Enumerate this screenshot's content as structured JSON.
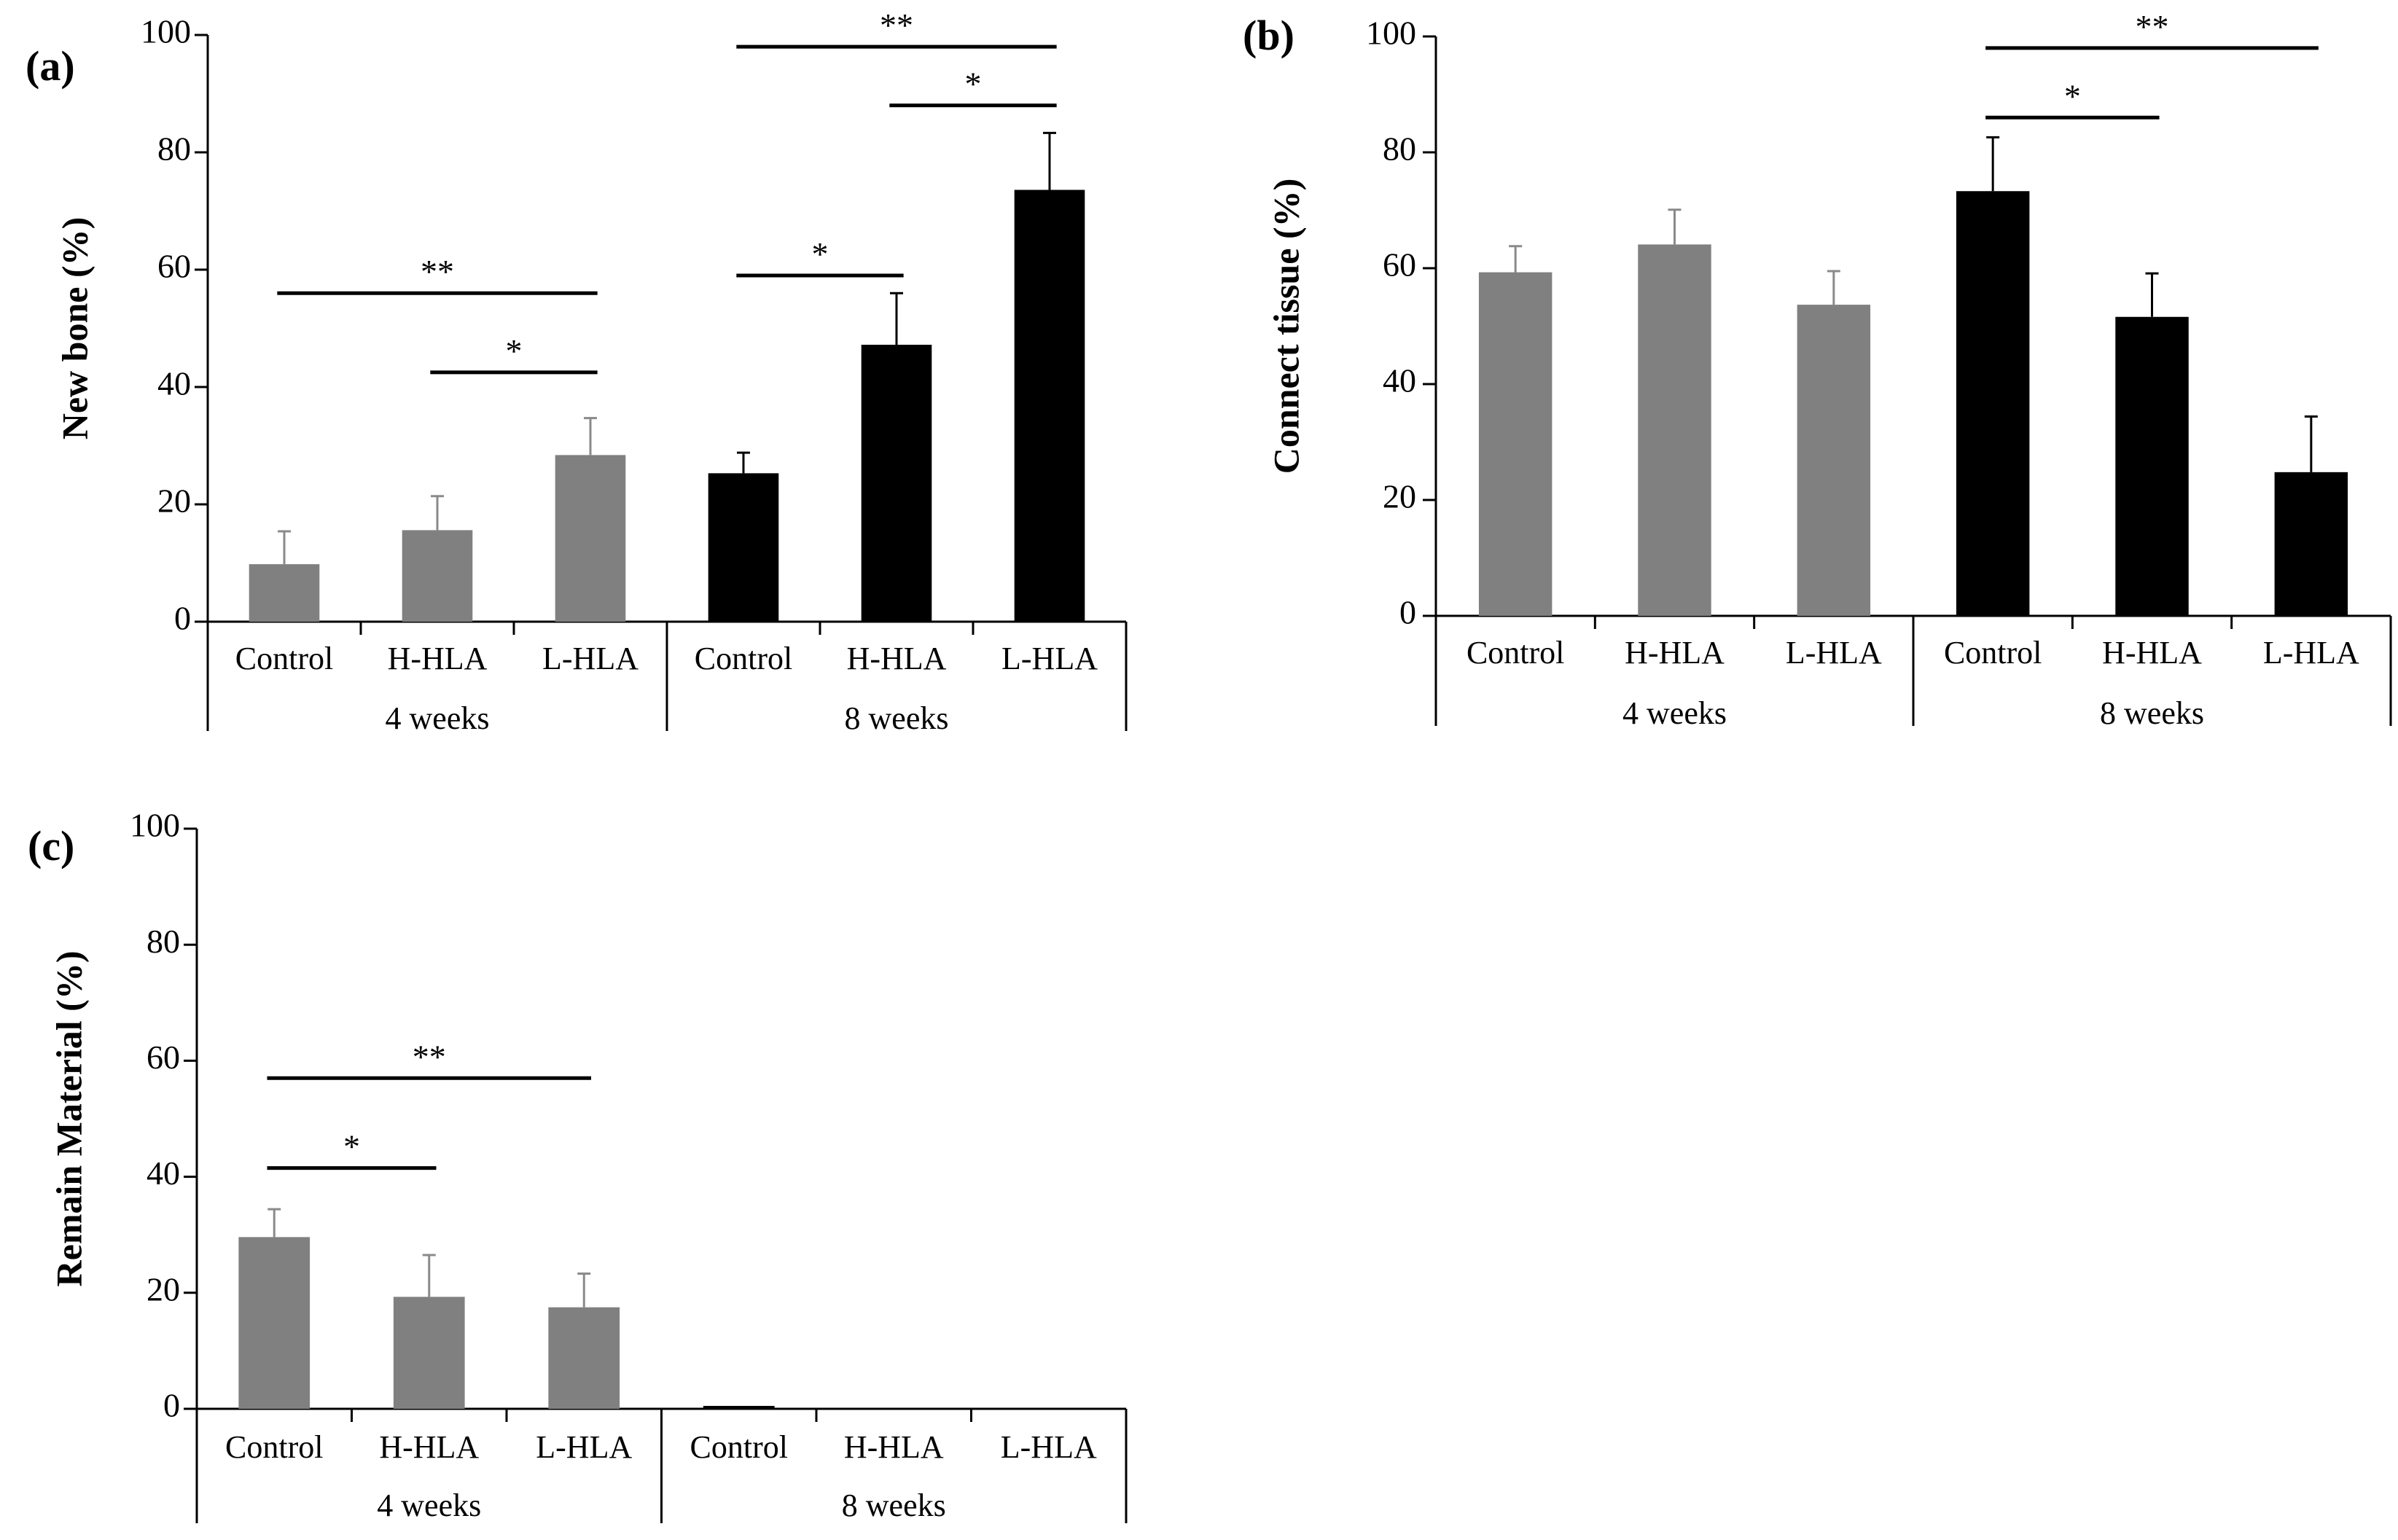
{
  "colors": {
    "week4": "#808080",
    "week8": "#000000",
    "axis": "#000000",
    "errorbar_week4": "#8a8a8a"
  },
  "chart_data": [
    {
      "type": "bar",
      "panel_label": "(a)",
      "ylabel": "New bone (%)",
      "ylim": [
        0,
        100
      ],
      "yticks": [
        "0",
        "20",
        "40",
        "60",
        "80",
        "100"
      ],
      "categories": [
        "Control",
        "H-HLA",
        "L-HLA",
        "Control",
        "H-HLA",
        "L-HLA"
      ],
      "groups": [
        {
          "label": "4 weeks",
          "indices": [
            0,
            1,
            2
          ]
        },
        {
          "label": "8 weeks",
          "indices": [
            3,
            4,
            5
          ]
        }
      ],
      "values": [
        9.8,
        15.6,
        28.4,
        25.3,
        47.2,
        73.6
      ],
      "errors": [
        5.6,
        5.8,
        6.3,
        3.5,
        8.8,
        9.7
      ],
      "colors": [
        "#808080",
        "#808080",
        "#808080",
        "#000000",
        "#000000",
        "#000000"
      ],
      "significance": [
        {
          "from": 0,
          "to": 2,
          "label": "**",
          "y": 56
        },
        {
          "from": 1,
          "to": 2,
          "label": "*",
          "y": 42.5
        },
        {
          "from": 3,
          "to": 4,
          "label": "*",
          "y": 59
        },
        {
          "from": 4,
          "to": 5,
          "label": "*",
          "y": 88
        },
        {
          "from": 3,
          "to": 5,
          "label": "**",
          "y": 98
        }
      ]
    },
    {
      "type": "bar",
      "panel_label": "(b)",
      "ylabel": "Connect tissue (%)",
      "ylim": [
        0,
        100
      ],
      "yticks": [
        "0",
        "20",
        "40",
        "60",
        "80",
        "100"
      ],
      "categories": [
        "Control",
        "H-HLA",
        "L-HLA",
        "Control",
        "H-HLA",
        "L-HLA"
      ],
      "groups": [
        {
          "label": "4 weeks",
          "indices": [
            0,
            1,
            2
          ]
        },
        {
          "label": "8 weeks",
          "indices": [
            3,
            4,
            5
          ]
        }
      ],
      "values": [
        59.3,
        64.1,
        53.7,
        73.3,
        51.6,
        24.8
      ],
      "errors": [
        4.5,
        6.0,
        5.8,
        9.3,
        7.5,
        9.6
      ],
      "colors": [
        "#808080",
        "#808080",
        "#808080",
        "#000000",
        "#000000",
        "#000000"
      ],
      "significance": [
        {
          "from": 3,
          "to": 4,
          "label": "*",
          "y": 86
        },
        {
          "from": 3,
          "to": 5,
          "label": "**",
          "y": 98
        }
      ]
    },
    {
      "type": "bar",
      "panel_label": "(c)",
      "ylabel": "Remain Material (%)",
      "ylim": [
        0,
        100
      ],
      "yticks": [
        "0",
        "20",
        "40",
        "60",
        "80",
        "100"
      ],
      "categories": [
        "Control",
        "H-HLA",
        "L-HLA",
        "Control",
        "H-HLA",
        "L-HLA"
      ],
      "groups": [
        {
          "label": "4 weeks",
          "indices": [
            0,
            1,
            2
          ]
        },
        {
          "label": "8 weeks",
          "indices": [
            3,
            4,
            5
          ]
        }
      ],
      "values": [
        29.6,
        19.3,
        17.5,
        0.5,
        0,
        0
      ],
      "errors": [
        4.8,
        7.2,
        5.8,
        0,
        0,
        0
      ],
      "colors": [
        "#808080",
        "#808080",
        "#808080",
        "#000000",
        "#000000",
        "#000000"
      ],
      "significance": [
        {
          "from": 0,
          "to": 1,
          "label": "*",
          "y": 41.5
        },
        {
          "from": 0,
          "to": 2,
          "label": "**",
          "y": 57
        }
      ]
    }
  ]
}
